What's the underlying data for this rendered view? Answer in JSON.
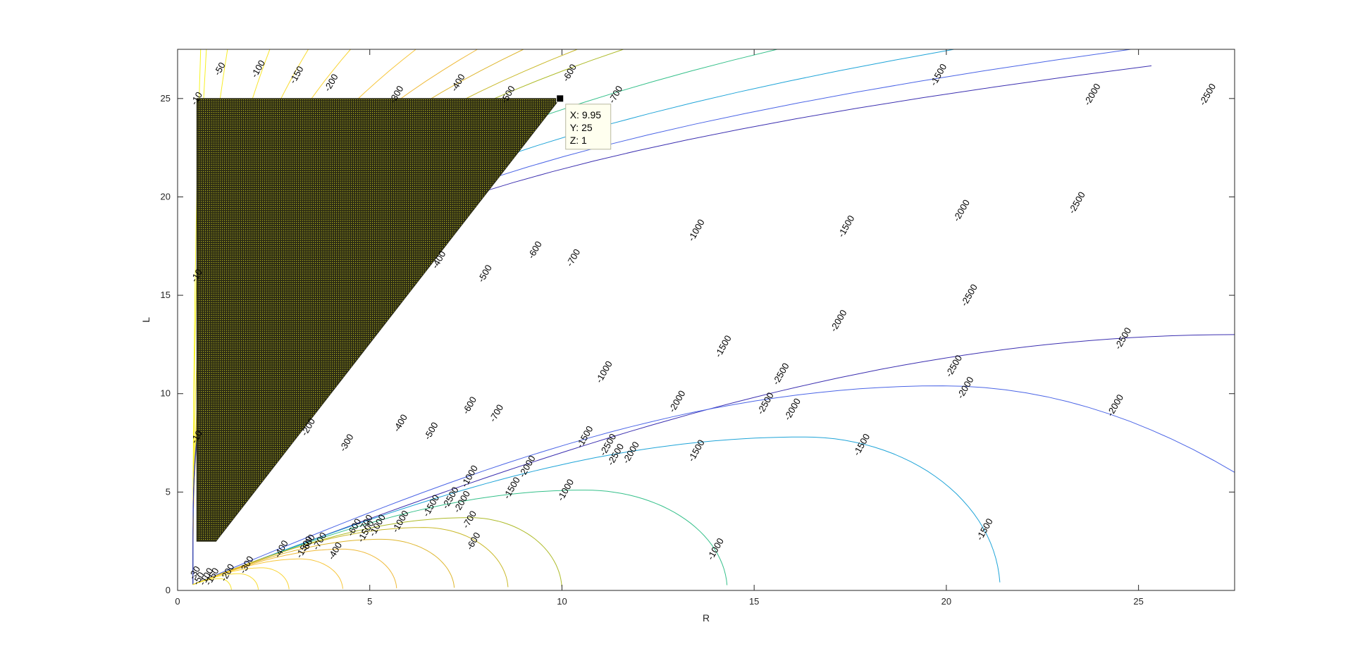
{
  "chart_data": {
    "type": "contour",
    "title": "",
    "xlabel": "R",
    "ylabel": "L",
    "xlim": [
      0,
      27.5
    ],
    "ylim": [
      0,
      27.5
    ],
    "xticks": [
      0,
      5,
      10,
      15,
      20,
      25
    ],
    "yticks": [
      0,
      5,
      10,
      15,
      20,
      25
    ],
    "grid": false,
    "colormap": "parula",
    "contour_levels": [
      -2500,
      -2000,
      -1500,
      -1000,
      -700,
      -600,
      -500,
      -400,
      -300,
      -200,
      -150,
      -100,
      -50,
      -30,
      -10
    ],
    "level_colors": {
      "-2500": "#3b2fb0",
      "-2000": "#4a64e6",
      "-1500": "#1fa4d8",
      "-1000": "#35c08a",
      "-700": "#aebb2a",
      "-600": "#c9b92a",
      "-500": "#deb62e",
      "-400": "#efba3a",
      "-300": "#f7c63b",
      "-200": "#f9d435",
      "-150": "#f9dc30",
      "-100": "#f8e42b",
      "-50": "#f7ec27",
      "-30": "#f6f024",
      "-10": "#f6f522"
    },
    "shaded_region": {
      "label": "triangular masked region",
      "vertices": [
        [
          0.5,
          2.5
        ],
        [
          1.0,
          2.5
        ],
        [
          9.95,
          25
        ],
        [
          0.5,
          25
        ]
      ],
      "z": 1,
      "fill_color": "#2b2b14",
      "edge_color": "#b5b51e"
    },
    "contour_labels": [
      {
        "level": "-10",
        "x": 0.5,
        "y": 25
      },
      {
        "level": "-50",
        "x": 1.1,
        "y": 26.5
      },
      {
        "level": "-100",
        "x": 2.1,
        "y": 26.5
      },
      {
        "level": "-150",
        "x": 3.1,
        "y": 26.2
      },
      {
        "level": "-200",
        "x": 4.0,
        "y": 25.8
      },
      {
        "level": "-300",
        "x": 5.7,
        "y": 25.2
      },
      {
        "level": "-400",
        "x": 7.3,
        "y": 25.8
      },
      {
        "level": "-500",
        "x": 8.6,
        "y": 25.2
      },
      {
        "level": "-600",
        "x": 10.2,
        "y": 26.3
      },
      {
        "level": "-700",
        "x": 11.4,
        "y": 25.2
      },
      {
        "level": "-1500",
        "x": 19.8,
        "y": 26.2
      },
      {
        "level": "-2000",
        "x": 23.8,
        "y": 25.2
      },
      {
        "level": "-2500",
        "x": 26.8,
        "y": 25.2
      },
      {
        "level": "-10",
        "x": 0.5,
        "y": 16
      },
      {
        "level": "-10",
        "x": 0.5,
        "y": 7.8
      },
      {
        "level": "-400",
        "x": 6.8,
        "y": 16.8
      },
      {
        "level": "-500",
        "x": 8.0,
        "y": 16.1
      },
      {
        "level": "-600",
        "x": 9.3,
        "y": 17.3
      },
      {
        "level": "-700",
        "x": 10.3,
        "y": 16.9
      },
      {
        "level": "-1000",
        "x": 13.5,
        "y": 18.3
      },
      {
        "level": "-1500",
        "x": 17.4,
        "y": 18.5
      },
      {
        "level": "-2000",
        "x": 20.4,
        "y": 19.3
      },
      {
        "level": "-2500",
        "x": 23.4,
        "y": 19.7
      },
      {
        "level": "-2000",
        "x": 17.2,
        "y": 13.7
      },
      {
        "level": "-2500",
        "x": 20.6,
        "y": 15.0
      },
      {
        "level": "-1500",
        "x": 14.2,
        "y": 12.4
      },
      {
        "level": "-1000",
        "x": 11.1,
        "y": 11.1
      },
      {
        "level": "-2500",
        "x": 15.7,
        "y": 11.0
      },
      {
        "level": "-2500",
        "x": 20.2,
        "y": 11.4
      },
      {
        "level": "-2500",
        "x": 24.6,
        "y": 12.8
      },
      {
        "level": "-200",
        "x": 3.4,
        "y": 8.3
      },
      {
        "level": "-300",
        "x": 4.4,
        "y": 7.5
      },
      {
        "level": "-400",
        "x": 5.8,
        "y": 8.5
      },
      {
        "level": "-500",
        "x": 6.6,
        "y": 8.1
      },
      {
        "level": "-600",
        "x": 7.6,
        "y": 9.4
      },
      {
        "level": "-700",
        "x": 8.3,
        "y": 9.0
      },
      {
        "level": "-2000",
        "x": 13.0,
        "y": 9.6
      },
      {
        "level": "-2500",
        "x": 15.3,
        "y": 9.5
      },
      {
        "level": "-2000",
        "x": 16.0,
        "y": 9.2
      },
      {
        "level": "-2000",
        "x": 20.5,
        "y": 10.3
      },
      {
        "level": "-2000",
        "x": 24.4,
        "y": 9.4
      },
      {
        "level": "-1500",
        "x": 10.6,
        "y": 7.8
      },
      {
        "level": "-2500",
        "x": 11.2,
        "y": 7.4
      },
      {
        "level": "-2500",
        "x": 11.4,
        "y": 6.9
      },
      {
        "level": "-2000",
        "x": 11.8,
        "y": 7.0
      },
      {
        "level": "-1500",
        "x": 13.5,
        "y": 7.1
      },
      {
        "level": "-1500",
        "x": 17.8,
        "y": 7.4
      },
      {
        "level": "-1000",
        "x": 7.6,
        "y": 5.8
      },
      {
        "level": "-2000",
        "x": 9.1,
        "y": 6.3
      },
      {
        "level": "-1500",
        "x": 8.7,
        "y": 5.2
      },
      {
        "level": "-1000",
        "x": 10.1,
        "y": 5.1
      },
      {
        "level": "-2500",
        "x": 7.1,
        "y": 4.7
      },
      {
        "level": "-2000",
        "x": 7.4,
        "y": 4.5
      },
      {
        "level": "-1500",
        "x": 6.6,
        "y": 4.3
      },
      {
        "level": "-700",
        "x": 7.6,
        "y": 3.6
      },
      {
        "level": "-600",
        "x": 7.7,
        "y": 2.5
      },
      {
        "level": "-1000",
        "x": 5.8,
        "y": 3.5
      },
      {
        "level": "-1000",
        "x": 14.0,
        "y": 2.1
      },
      {
        "level": "-1500",
        "x": 21.0,
        "y": 3.1
      },
      {
        "level": "-700",
        "x": 4.9,
        "y": 3.4
      },
      {
        "level": "-600",
        "x": 4.6,
        "y": 3.2
      },
      {
        "level": "-1000",
        "x": 5.2,
        "y": 3.3
      },
      {
        "level": "-1500",
        "x": 4.9,
        "y": 3.0
      },
      {
        "level": "-500",
        "x": 3.4,
        "y": 2.4
      },
      {
        "level": "-700",
        "x": 3.7,
        "y": 2.5
      },
      {
        "level": "-400",
        "x": 2.7,
        "y": 2.1
      },
      {
        "level": "-400",
        "x": 4.1,
        "y": 2.0
      },
      {
        "level": "-1500",
        "x": 3.3,
        "y": 2.2
      },
      {
        "level": "-300",
        "x": 1.8,
        "y": 1.3
      },
      {
        "level": "-200",
        "x": 1.3,
        "y": 0.9
      },
      {
        "level": "-150",
        "x": 0.9,
        "y": 0.7
      },
      {
        "level": "-30",
        "x": 0.45,
        "y": 0.9
      },
      {
        "level": "-50",
        "x": 0.55,
        "y": 0.6
      },
      {
        "level": "-100",
        "x": 0.75,
        "y": 0.7
      }
    ],
    "datatip": {
      "x_label": "X: 9.95",
      "y_label": "Y: 25",
      "z_label": "Z: 1",
      "x": 9.95,
      "y": 25
    }
  }
}
